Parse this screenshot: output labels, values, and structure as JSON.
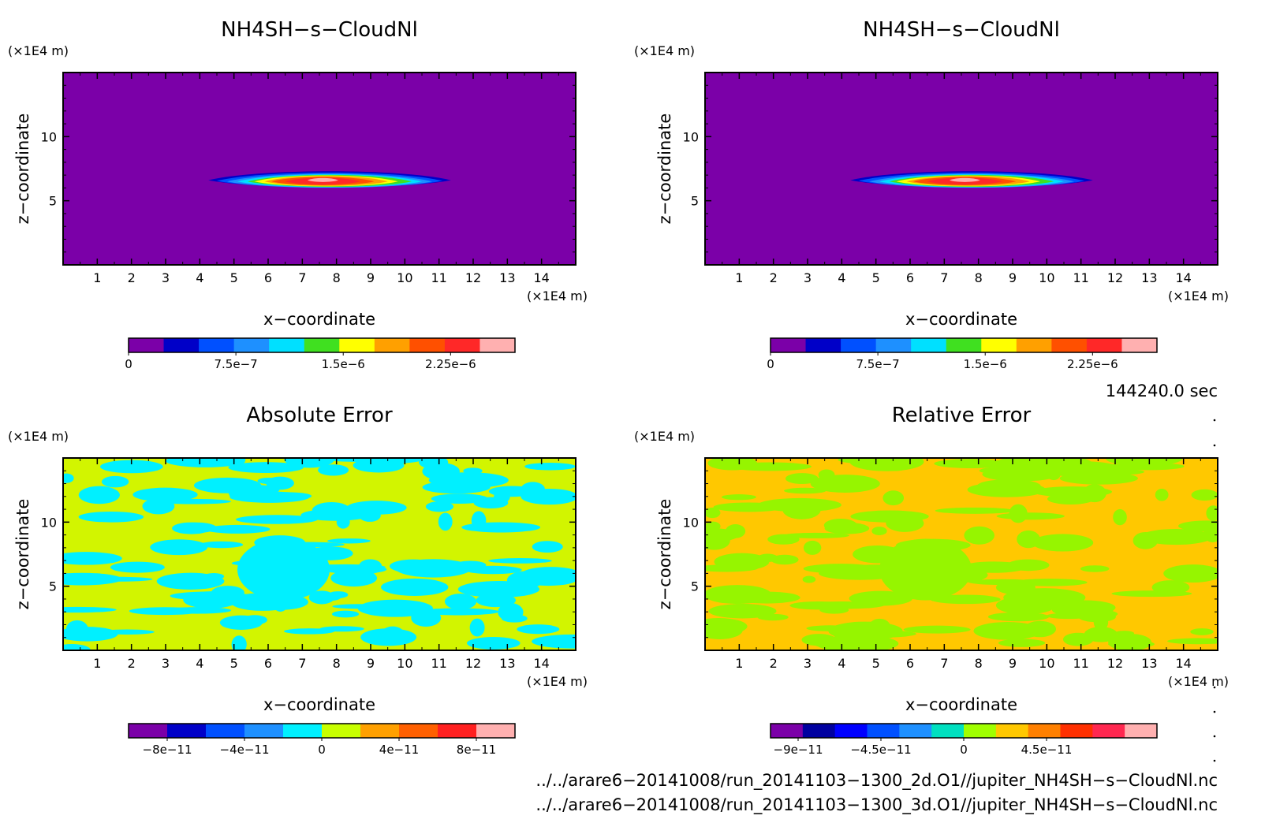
{
  "chart_data": [
    {
      "type": "heatmap",
      "title": "NH4SH−s−CloudNl",
      "xlabel": "x−coordinate",
      "ylabel": "z−coordinate",
      "x_unit": "(×1E4 m)",
      "y_unit": "(×1E4 m)",
      "xlim": [
        0,
        15
      ],
      "ylim": [
        0,
        15
      ],
      "x_ticks": [
        "1",
        "2",
        "3",
        "4",
        "5",
        "6",
        "7",
        "8",
        "9",
        "10",
        "11",
        "12",
        "13",
        "14"
      ],
      "y_ticks": [
        "5",
        "10"
      ],
      "colorbar_ticks": [
        "0",
        "7.5e−7",
        "1.5e−6",
        "2.25e−6"
      ],
      "colorbar_range": [
        0,
        2.7e-06
      ],
      "colorbar_colors": [
        "#7b00a8",
        "#0000c8",
        "#0050ff",
        "#1e90ff",
        "#00e0ff",
        "#40e020",
        "#ffff00",
        "#ffa000",
        "#ff5000",
        "#ff2828",
        "#ffb0b0"
      ],
      "field": "cloud"
    },
    {
      "type": "heatmap",
      "title": "NH4SH−s−CloudNl",
      "xlabel": "x−coordinate",
      "ylabel": "z−coordinate",
      "x_unit": "(×1E4 m)",
      "y_unit": "(×1E4 m)",
      "xlim": [
        0,
        15
      ],
      "ylim": [
        0,
        15
      ],
      "x_ticks": [
        "1",
        "2",
        "3",
        "4",
        "5",
        "6",
        "7",
        "8",
        "9",
        "10",
        "11",
        "12",
        "13",
        "14"
      ],
      "y_ticks": [
        "5",
        "10"
      ],
      "colorbar_ticks": [
        "0",
        "7.5e−7",
        "1.5e−6",
        "2.25e−6"
      ],
      "colorbar_range": [
        0,
        2.7e-06
      ],
      "colorbar_colors": [
        "#7b00a8",
        "#0000c8",
        "#0050ff",
        "#1e90ff",
        "#00e0ff",
        "#40e020",
        "#ffff00",
        "#ffa000",
        "#ff5000",
        "#ff2828",
        "#ffb0b0"
      ],
      "field": "cloud"
    },
    {
      "type": "heatmap",
      "title": "Absolute Error",
      "xlabel": "x−coordinate",
      "ylabel": "z−coordinate",
      "x_unit": "(×1E4 m)",
      "y_unit": "(×1E4 m)",
      "xlim": [
        0,
        15
      ],
      "ylim": [
        0,
        15
      ],
      "x_ticks": [
        "1",
        "2",
        "3",
        "4",
        "5",
        "6",
        "7",
        "8",
        "9",
        "10",
        "11",
        "12",
        "13",
        "14"
      ],
      "y_ticks": [
        "5",
        "10"
      ],
      "colorbar_ticks": [
        "−8e−11",
        "−4e−11",
        "0",
        "4e−11",
        "8e−11"
      ],
      "colorbar_range": [
        -1e-10,
        1e-10
      ],
      "colorbar_colors": [
        "#7b00a8",
        "#0000c8",
        "#0050ff",
        "#1e90ff",
        "#00f0ff",
        "#c8ff00",
        "#ffa000",
        "#ff6000",
        "#ff2020",
        "#ffb0b0"
      ],
      "field_colors": [
        "#00f0ff",
        "#d2f500"
      ],
      "field": "noise"
    },
    {
      "type": "heatmap",
      "title": "Relative Error",
      "xlabel": "x−coordinate",
      "ylabel": "z−coordinate",
      "x_unit": "(×1E4 m)",
      "y_unit": "(×1E4 m)",
      "xlim": [
        0,
        15
      ],
      "ylim": [
        0,
        15
      ],
      "x_ticks": [
        "1",
        "2",
        "3",
        "4",
        "5",
        "6",
        "7",
        "8",
        "9",
        "10",
        "11",
        "12",
        "13",
        "14"
      ],
      "y_ticks": [
        "5",
        "10"
      ],
      "colorbar_ticks": [
        "−9e−11",
        "−4.5e−11",
        "0",
        "4.5e−11"
      ],
      "colorbar_range": [
        -1.05e-10,
        1.05e-10
      ],
      "colorbar_colors": [
        "#7b00a8",
        "#0000a0",
        "#0000ff",
        "#0050ff",
        "#1e90ff",
        "#00e0c0",
        "#a0ff00",
        "#ffc800",
        "#ff8000",
        "#ff3000",
        "#ff2850",
        "#ffb0b0"
      ],
      "field_colors": [
        "#96f500",
        "#ffc800"
      ],
      "field": "noise"
    }
  ],
  "info": {
    "time": "144240.0 sec",
    "file_1": "../../arare6−20141008/run_20141103−1300_2d.O1//jupiter_NH4SH−s−CloudNl.nc",
    "file_2": "../../arare6−20141008/run_20141103−1300_3d.O1//jupiter_NH4SH−s−CloudNl.nc"
  }
}
